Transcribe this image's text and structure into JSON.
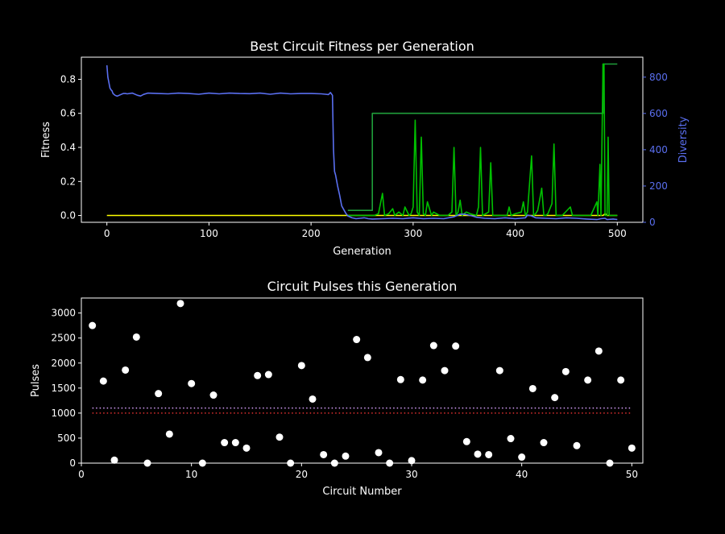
{
  "colors": {
    "background": "#000000",
    "axis": "#ffffff",
    "best_fitness": "#1f9e3a",
    "current_fitness": "#00c000",
    "yellow_series": "#ffff00",
    "diversity": "#5a6ff0",
    "markers": "#ffffff",
    "threshold_upper": "#d9a0ff",
    "threshold_lower": "#e03030"
  },
  "chart_data": [
    {
      "type": "line",
      "title": "Best Circuit Fitness per Generation",
      "xlabel": "Generation",
      "ylabel": "Fitness",
      "y2label": "Diversity",
      "xlim": [
        -25,
        525
      ],
      "ylim": [
        -0.04,
        0.93
      ],
      "y2lim": [
        0,
        910
      ],
      "xticks": [
        "0",
        "100",
        "200",
        "300",
        "400",
        "500"
      ],
      "xtick_values": [
        0,
        100,
        200,
        300,
        400,
        500
      ],
      "yticks": [
        "0.0",
        "0.2",
        "0.4",
        "0.6",
        "0.8"
      ],
      "ytick_values": [
        0,
        0.2,
        0.4,
        0.6,
        0.8
      ],
      "y2ticks": [
        "0",
        "200",
        "400",
        "600",
        "800"
      ],
      "y2tick_values": [
        0,
        200,
        400,
        600,
        800
      ],
      "series": [
        {
          "axis": "left",
          "color_key": "yellow_series",
          "x": [
            0,
            100,
            200,
            300,
            400,
            486,
            488,
            490,
            500
          ],
          "y": [
            0.0,
            0.0,
            0.0,
            0.0,
            0.0,
            0.0,
            0.01,
            0.0,
            0.0
          ]
        },
        {
          "axis": "left",
          "color_key": "best_fitness",
          "x": [
            236,
            260,
            260,
            486,
            486,
            500
          ],
          "y": [
            0.03,
            0.03,
            0.6,
            0.6,
            0.89,
            0.89
          ]
        },
        {
          "axis": "left",
          "color_key": "current_fitness",
          "x": [
            236,
            262,
            266,
            270,
            272,
            276,
            280,
            282,
            286,
            290,
            292,
            296,
            298,
            300,
            302,
            304,
            306,
            308,
            310,
            312,
            314,
            318,
            320,
            326,
            334,
            338,
            340,
            342,
            344,
            346,
            348,
            352,
            356,
            362,
            364,
            366,
            368,
            374,
            376,
            378,
            384,
            392,
            394,
            396,
            400,
            406,
            408,
            410,
            412,
            416,
            418,
            420,
            422,
            426,
            428,
            430,
            432,
            436,
            438,
            440,
            442,
            446,
            454,
            456,
            458,
            466,
            474,
            480,
            481,
            483,
            484,
            486,
            487,
            488,
            489,
            490,
            491,
            492,
            494,
            500
          ],
          "y": [
            0.0,
            0.0,
            0.01,
            0.13,
            0.0,
            0.01,
            0.04,
            0.0,
            0.02,
            0.0,
            0.05,
            0.0,
            0.01,
            0.05,
            0.56,
            0.02,
            0.0,
            0.46,
            0.01,
            0.0,
            0.08,
            0.0,
            0.02,
            0.0,
            0.0,
            0.02,
            0.4,
            0.0,
            0.02,
            0.09,
            0.0,
            0.02,
            0.01,
            0.0,
            0.05,
            0.4,
            0.0,
            0.02,
            0.31,
            0.0,
            0.0,
            0.0,
            0.05,
            0.0,
            0.01,
            0.02,
            0.08,
            0.0,
            0.02,
            0.35,
            0.0,
            0.01,
            0.03,
            0.16,
            0.0,
            0.0,
            0.01,
            0.07,
            0.42,
            0.0,
            0.0,
            0.0,
            0.05,
            0.0,
            0.0,
            0.0,
            0.0,
            0.08,
            0.0,
            0.3,
            0.0,
            0.89,
            0.89,
            0.0,
            0.0,
            0.0,
            0.46,
            0.0,
            0.0,
            0.0
          ]
        },
        {
          "axis": "right",
          "color_key": "diversity",
          "x": [
            0,
            1,
            2,
            3,
            4,
            5,
            6,
            8,
            10,
            12,
            14,
            16,
            18,
            20,
            25,
            30,
            33,
            36,
            40,
            50,
            60,
            70,
            80,
            90,
            100,
            110,
            120,
            130,
            140,
            150,
            160,
            170,
            180,
            190,
            200,
            210,
            214,
            217,
            219,
            221,
            222,
            223,
            224,
            226,
            228,
            230,
            232,
            234,
            236,
            240,
            244,
            248,
            252,
            256,
            260,
            270,
            280,
            290,
            300,
            310,
            320,
            330,
            340,
            346,
            350,
            354,
            358,
            362,
            370,
            380,
            390,
            400,
            410,
            412,
            416,
            420,
            430,
            440,
            450,
            460,
            470,
            480,
            484,
            488,
            490,
            496,
            500
          ],
          "y": [
            865,
            800,
            770,
            740,
            730,
            725,
            710,
            700,
            695,
            700,
            705,
            710,
            710,
            708,
            712,
            700,
            696,
            705,
            712,
            710,
            708,
            712,
            710,
            706,
            712,
            708,
            712,
            710,
            709,
            712,
            706,
            712,
            708,
            710,
            710,
            708,
            706,
            704,
            715,
            700,
            400,
            280,
            260,
            200,
            150,
            90,
            70,
            50,
            35,
            25,
            20,
            22,
            25,
            20,
            18,
            20,
            22,
            20,
            25,
            20,
            22,
            20,
            30,
            45,
            45,
            40,
            35,
            28,
            22,
            20,
            25,
            20,
            25,
            40,
            35,
            25,
            22,
            20,
            25,
            22,
            18,
            15,
            20,
            22,
            15,
            18,
            15
          ]
        }
      ]
    },
    {
      "type": "scatter",
      "title": "Circuit Pulses this Generation",
      "xlabel": "Circuit Number",
      "ylabel": "Pulses",
      "xlim": [
        0,
        51
      ],
      "ylim": [
        0,
        3300
      ],
      "xticks": [
        "0",
        "10",
        "20",
        "30",
        "40",
        "50"
      ],
      "xtick_values": [
        0,
        10,
        20,
        30,
        40,
        50
      ],
      "yticks": [
        "0",
        "500",
        "1000",
        "1500",
        "2000",
        "2500",
        "3000"
      ],
      "ytick_values": [
        0,
        500,
        1000,
        1500,
        2000,
        2500,
        3000
      ],
      "points": {
        "x": [
          1,
          2,
          3,
          4,
          5,
          6,
          7,
          8,
          9,
          10,
          11,
          12,
          13,
          14,
          15,
          16,
          17,
          18,
          19,
          20,
          21,
          22,
          23,
          24,
          25,
          26,
          27,
          28,
          29,
          30,
          31,
          32,
          33,
          34,
          35,
          36,
          37,
          38,
          39,
          40,
          41,
          42,
          43,
          44,
          45,
          46,
          47,
          48,
          49,
          50
        ],
        "y": [
          2750,
          1640,
          60,
          1860,
          2520,
          0,
          1390,
          580,
          3190,
          1590,
          0,
          1360,
          410,
          410,
          300,
          1750,
          1770,
          520,
          0,
          1950,
          1280,
          170,
          0,
          140,
          2470,
          2110,
          210,
          0,
          1670,
          50,
          1660,
          2350,
          1850,
          2340,
          430,
          180,
          170,
          1850,
          490,
          120,
          1490,
          410,
          1310,
          1830,
          350,
          1660,
          2240,
          0,
          1660,
          300
        ]
      },
      "thresholds": [
        {
          "y": 1100,
          "color_key": "threshold_upper"
        },
        {
          "y": 1000,
          "color_key": "threshold_lower"
        }
      ]
    }
  ]
}
